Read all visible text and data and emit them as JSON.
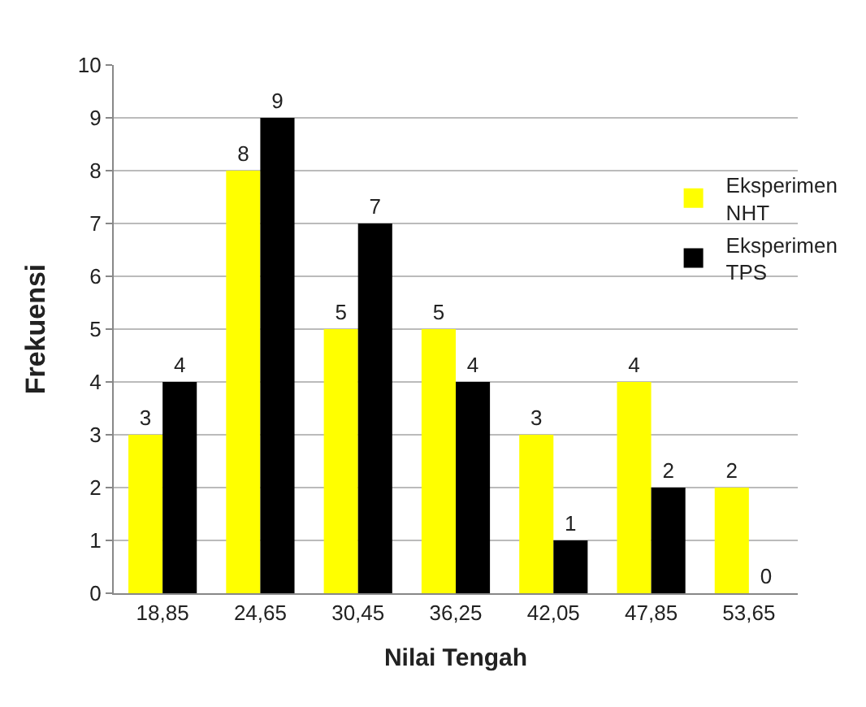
{
  "chart_data": {
    "type": "bar",
    "xlabel": "Nilai Tengah",
    "ylabel": "Frekuensi",
    "categories": [
      "18,85",
      "24,65",
      "30,45",
      "36,25",
      "42,05",
      "47,85",
      "53,65"
    ],
    "series": [
      {
        "name": "Eksperimen NHT",
        "color": "#ffff00",
        "values": [
          3,
          8,
          5,
          5,
          3,
          4,
          2
        ]
      },
      {
        "name": "Eksperimen TPS",
        "color": "#000000",
        "values": [
          4,
          9,
          7,
          4,
          1,
          2,
          0
        ]
      }
    ],
    "ylim": [
      0,
      10
    ],
    "yticks": [
      0,
      1,
      2,
      3,
      4,
      5,
      6,
      7,
      8,
      9,
      10
    ],
    "grid": "y",
    "legend": "right",
    "data_labels": true
  }
}
